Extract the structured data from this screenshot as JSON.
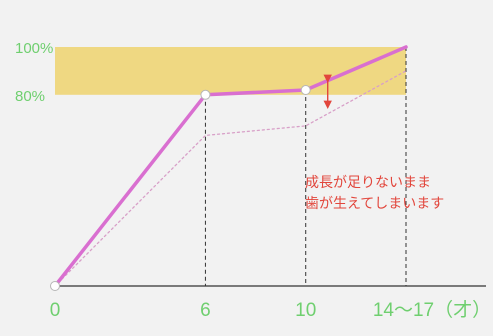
{
  "chart_data": {
    "type": "line",
    "x": [
      0,
      6,
      10,
      14
    ],
    "xticks": [
      "0",
      "6",
      "10",
      "14～17（才）"
    ],
    "yticks": [
      "80%",
      "100%"
    ],
    "ylim": [
      0,
      100
    ],
    "band": [
      80,
      100
    ],
    "series": [
      {
        "values": [
          0,
          80,
          82,
          100
        ],
        "line": "solid",
        "color": "#d96fd0"
      },
      {
        "values": [
          0,
          63,
          67,
          90
        ],
        "line": "dotted",
        "color": "#d8a0c8"
      }
    ],
    "annotation": [
      "成長が足りないまま",
      "歯が生えてしまいます"
    ],
    "grid": false,
    "colors": {
      "band": "#efd46e",
      "axis": "#333333",
      "tick_text": "#6fcf6f",
      "annotation": "#e2463c",
      "arrow": "#e2463c",
      "marker_fill": "#ffffff",
      "background": "#f2f2f2"
    }
  }
}
